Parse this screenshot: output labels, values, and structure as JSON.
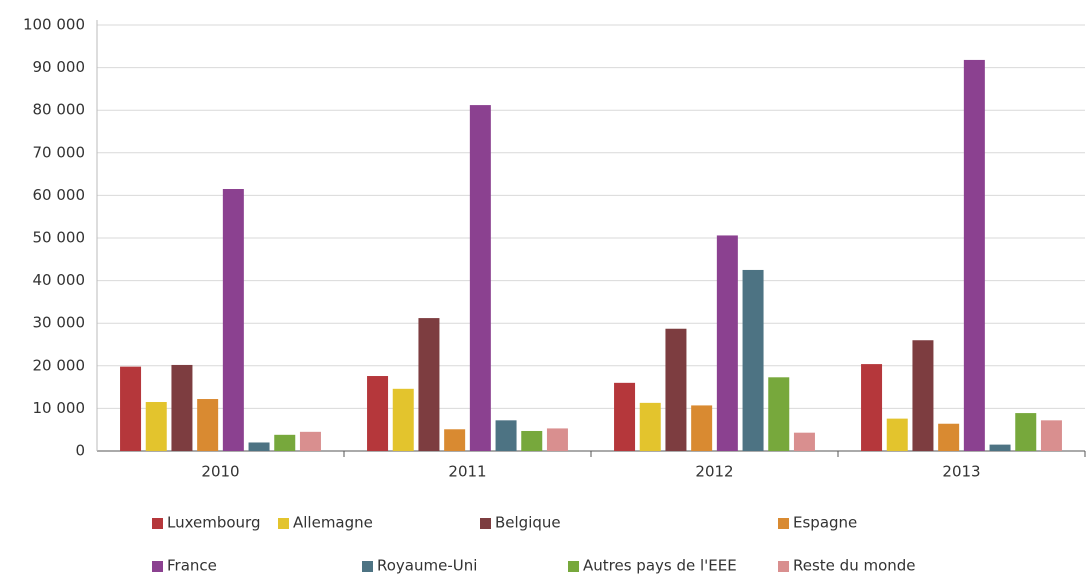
{
  "chart_data": {
    "type": "bar",
    "categories": [
      "2010",
      "2011",
      "2012",
      "2013"
    ],
    "series": [
      {
        "name": "Luxembourg",
        "color": "#b5373b",
        "values": [
          19800,
          17600,
          16000,
          20400
        ]
      },
      {
        "name": "Allemagne",
        "color": "#e3c42d",
        "values": [
          11500,
          14600,
          11300,
          7600
        ]
      },
      {
        "name": "Belgique",
        "color": "#7d3d40",
        "values": [
          20200,
          31200,
          28700,
          26000
        ]
      },
      {
        "name": "Espagne",
        "color": "#d98a31",
        "values": [
          12200,
          5100,
          10700,
          6400
        ]
      },
      {
        "name": "France",
        "color": "#8b4190",
        "values": [
          61500,
          81200,
          50600,
          91800
        ]
      },
      {
        "name": "Royaume-Uni",
        "color": "#4d7383",
        "values": [
          2000,
          7200,
          42500,
          1500
        ]
      },
      {
        "name": "Autres pays de l'EEE",
        "color": "#77a83c",
        "values": [
          3800,
          4700,
          17300,
          8900
        ]
      },
      {
        "name": "Reste du monde",
        "color": "#d98f8f",
        "values": [
          4500,
          5300,
          4300,
          7200
        ]
      }
    ],
    "ylim": [
      0,
      100000
    ],
    "yticks": [
      0,
      {
        "value": 10000,
        "label": "10 000"
      },
      {
        "value": 20000,
        "label": "20 000"
      },
      {
        "value": 30000,
        "label": "30 000"
      },
      {
        "value": 40000,
        "label": "40 000"
      },
      {
        "value": 50000,
        "label": "50 000"
      },
      {
        "value": 60000,
        "label": "60 000"
      },
      {
        "value": 70000,
        "label": "70 000"
      },
      {
        "value": 80000,
        "label": "80 000"
      },
      {
        "value": 90000,
        "label": "90 000"
      },
      {
        "value": 100000,
        "label": "100 000"
      }
    ],
    "grid": true,
    "legend": "bottom"
  }
}
